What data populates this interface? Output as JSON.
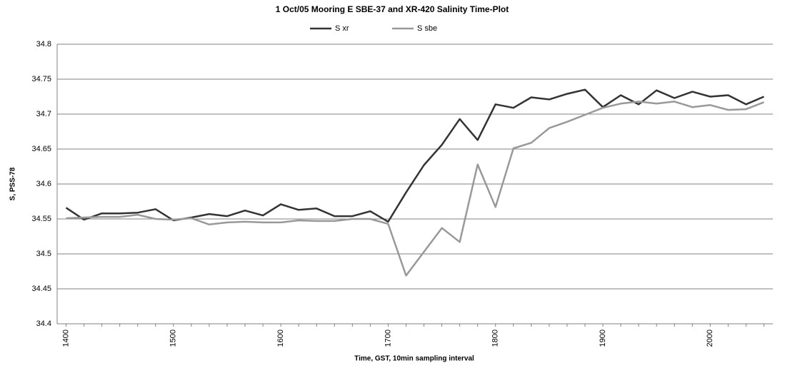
{
  "chart_data": {
    "type": "line",
    "title": "1 Oct/05 Mooring E SBE-37 and XR-420 Salinity Time-Plot",
    "x_label": "Time, GST, 10min sampling interval",
    "y_label": "S, PSS-78",
    "categories": [
      "1400",
      null,
      null,
      null,
      null,
      null,
      "1500",
      null,
      null,
      null,
      null,
      null,
      "1600",
      null,
      null,
      null,
      null,
      null,
      "1700",
      null,
      null,
      null,
      null,
      null,
      "1800",
      null,
      null,
      null,
      null,
      null,
      "1900",
      null,
      null,
      null,
      null,
      null,
      "2000",
      null,
      null,
      null
    ],
    "series": [
      {
        "name": "S xr",
        "color": "#333333",
        "values": [
          34.566,
          34.549,
          34.558,
          34.558,
          34.559,
          34.564,
          34.548,
          34.552,
          34.557,
          34.554,
          34.562,
          34.555,
          34.571,
          34.563,
          34.565,
          34.554,
          34.554,
          34.561,
          34.546,
          34.588,
          34.627,
          34.656,
          34.693,
          34.663,
          34.714,
          34.709,
          34.724,
          34.721,
          34.729,
          34.735,
          34.71,
          34.727,
          34.714,
          34.734,
          34.723,
          34.732,
          34.725,
          34.727,
          34.714,
          34.725
        ]
      },
      {
        "name": "S sbe",
        "color": "#999999",
        "values": [
          34.551,
          34.552,
          34.553,
          34.553,
          34.556,
          34.55,
          34.549,
          34.551,
          34.542,
          34.545,
          34.546,
          34.545,
          34.545,
          34.548,
          34.547,
          34.547,
          34.55,
          34.55,
          34.543,
          34.469,
          34.503,
          34.537,
          34.517,
          34.628,
          34.567,
          34.651,
          34.659,
          34.68,
          34.689,
          34.699,
          34.709,
          34.715,
          34.718,
          34.715,
          34.718,
          34.71,
          34.713,
          34.706,
          34.707,
          34.717
        ]
      }
    ],
    "ylim": [
      34.4,
      34.8
    ],
    "yticks": [
      34.4,
      34.45,
      34.5,
      34.55,
      34.6,
      34.65,
      34.7,
      34.75,
      34.8
    ],
    "grid": true,
    "legend": "top"
  }
}
